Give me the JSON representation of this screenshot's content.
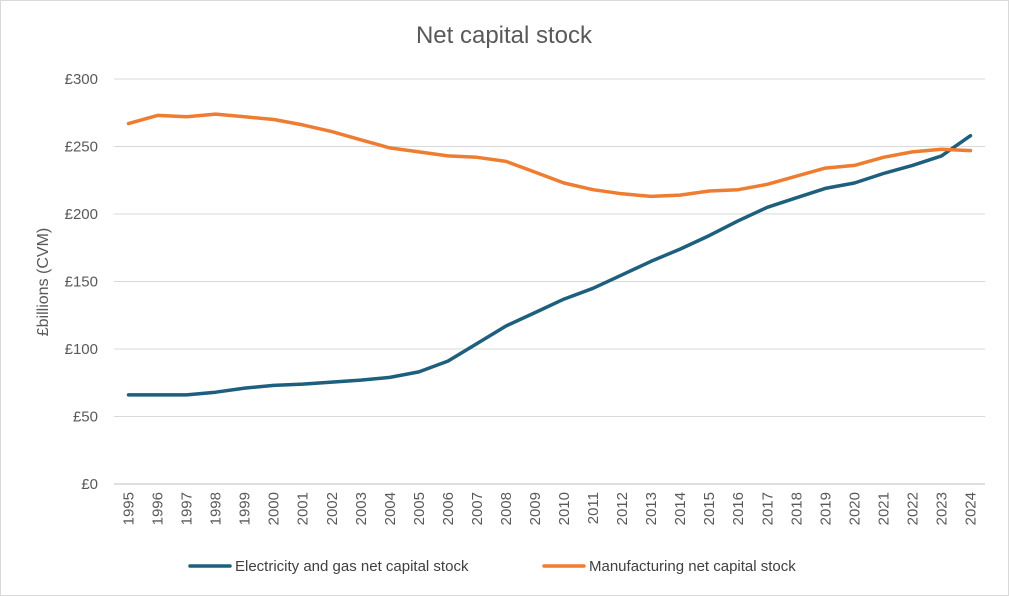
{
  "chart_data": {
    "type": "line",
    "title": "Net capital stock",
    "xlabel": "",
    "ylabel": "£billions (CVM)",
    "ylim": [
      0,
      300
    ],
    "yticks": [
      0,
      50,
      100,
      150,
      200,
      250,
      300
    ],
    "ytick_labels": [
      "£0",
      "£50",
      "£100",
      "£150",
      "£200",
      "£250",
      "£300"
    ],
    "grid": true,
    "legend_position": "bottom",
    "x": [
      "1995",
      "1996",
      "1997",
      "1998",
      "1999",
      "2000",
      "2001",
      "2002",
      "2003",
      "2004",
      "2005",
      "2006",
      "2007",
      "2008",
      "2009",
      "2010",
      "2011",
      "2012",
      "2013",
      "2014",
      "2015",
      "2016",
      "2017",
      "2018",
      "2019",
      "2020",
      "2021",
      "2022",
      "2023",
      "2024"
    ],
    "series": [
      {
        "name": "Electricity and gas net capital stock",
        "color": "#1f5f7e",
        "values": [
          66,
          66,
          66,
          68,
          71,
          73,
          74,
          75.5,
          77,
          79,
          83,
          91,
          104,
          117,
          127,
          137,
          145,
          155,
          165,
          174,
          184,
          195,
          205,
          212,
          219,
          223,
          230,
          236,
          243,
          258
        ]
      },
      {
        "name": "Manufacturing net capital stock",
        "color": "#ee7d31",
        "values": [
          267,
          273,
          272,
          274,
          272,
          270,
          266,
          261,
          255,
          249,
          246,
          243,
          242,
          239,
          231,
          223,
          218,
          215,
          213,
          214,
          217,
          218,
          222,
          228,
          234,
          236,
          242,
          246,
          248,
          247
        ]
      }
    ]
  }
}
